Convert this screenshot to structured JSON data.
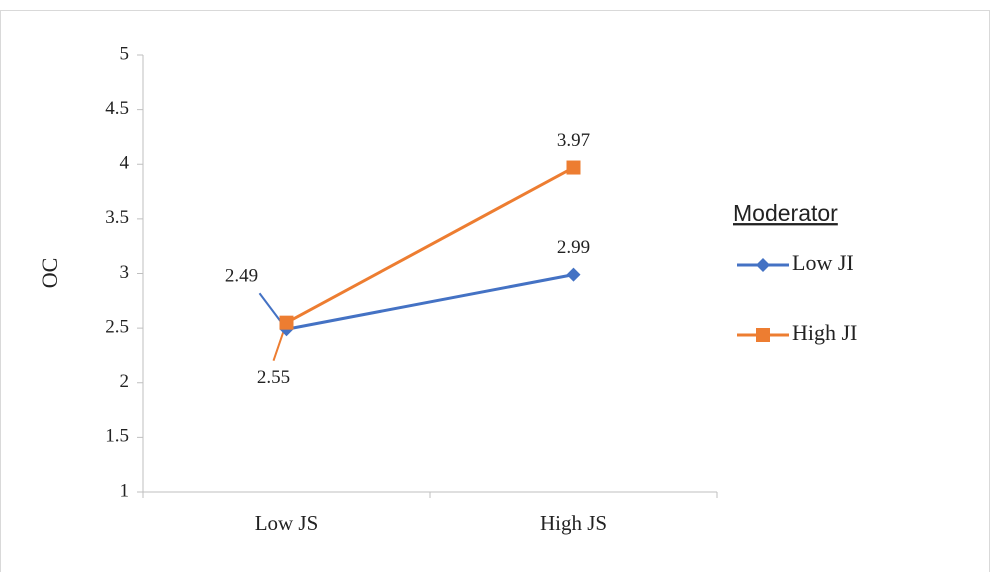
{
  "chart_data": {
    "type": "line",
    "y_label": "OC",
    "categories": [
      "Low JS",
      "High JS"
    ],
    "series": [
      {
        "name": "Low JI",
        "color": "#4472c4",
        "marker": "diamond",
        "values": [
          2.49,
          2.99
        ]
      },
      {
        "name": "High JI",
        "color": "#ed7d31",
        "marker": "square",
        "values": [
          2.55,
          3.97
        ]
      }
    ],
    "legend_title": "Moderator",
    "legend": "right",
    "ylim": [
      1,
      5
    ],
    "yticks": [
      1,
      1.5,
      2,
      2.5,
      3,
      3.5,
      4,
      4.5,
      5
    ],
    "grid": false
  }
}
